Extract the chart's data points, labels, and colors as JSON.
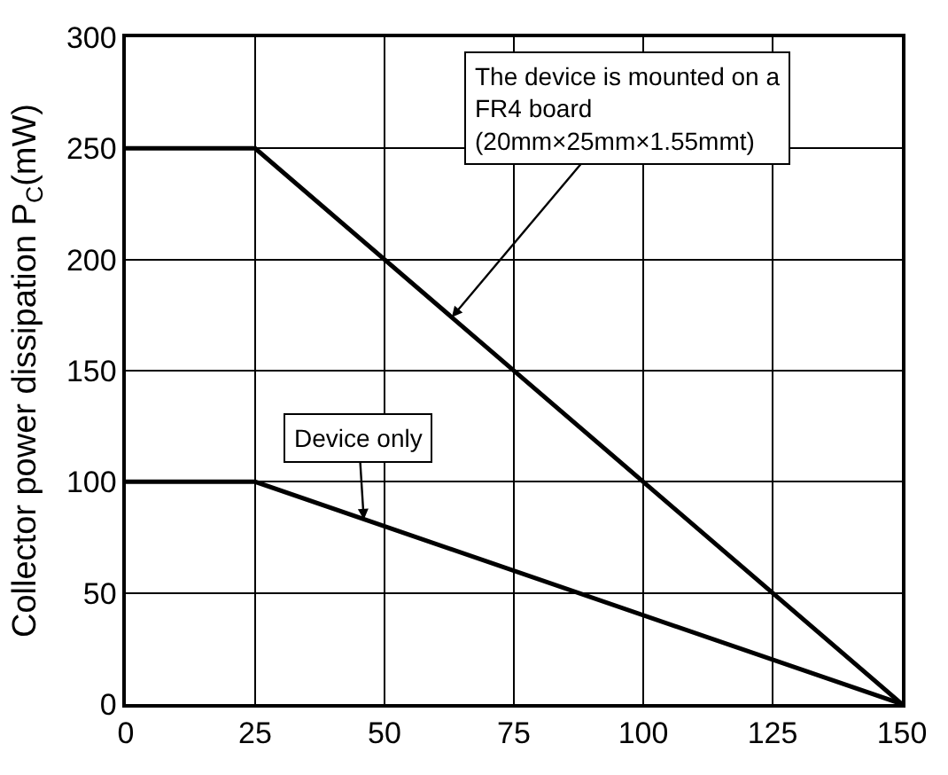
{
  "chart_data": {
    "type": "line",
    "ylabel": "Collector power dissipation P$_{C}$(mW)",
    "x": [
      0,
      25,
      150
    ],
    "series": [
      {
        "color": "#000000",
        "values": [
          250,
          250,
          0
        ]
      },
      {
        "color": "#000000",
        "values": [
          100,
          100,
          0
        ]
      }
    ],
    "xlim": [
      0,
      150
    ],
    "xticks": [
      0,
      25,
      50,
      75,
      100,
      125,
      150
    ],
    "ylim": [
      0,
      300
    ],
    "yticks": [
      0,
      50,
      100,
      150,
      200,
      250,
      300
    ],
    "grid": true,
    "marker": "none",
    "line_style": "solid",
    "annotations": [
      {
        "text": "The device is mounted on a\nFR4 board\n(20mm×25mm×1.55mmt)",
        "x": 63,
        "y": 174
      },
      {
        "text": "Device only",
        "x": 46,
        "y": 83
      }
    ]
  }
}
